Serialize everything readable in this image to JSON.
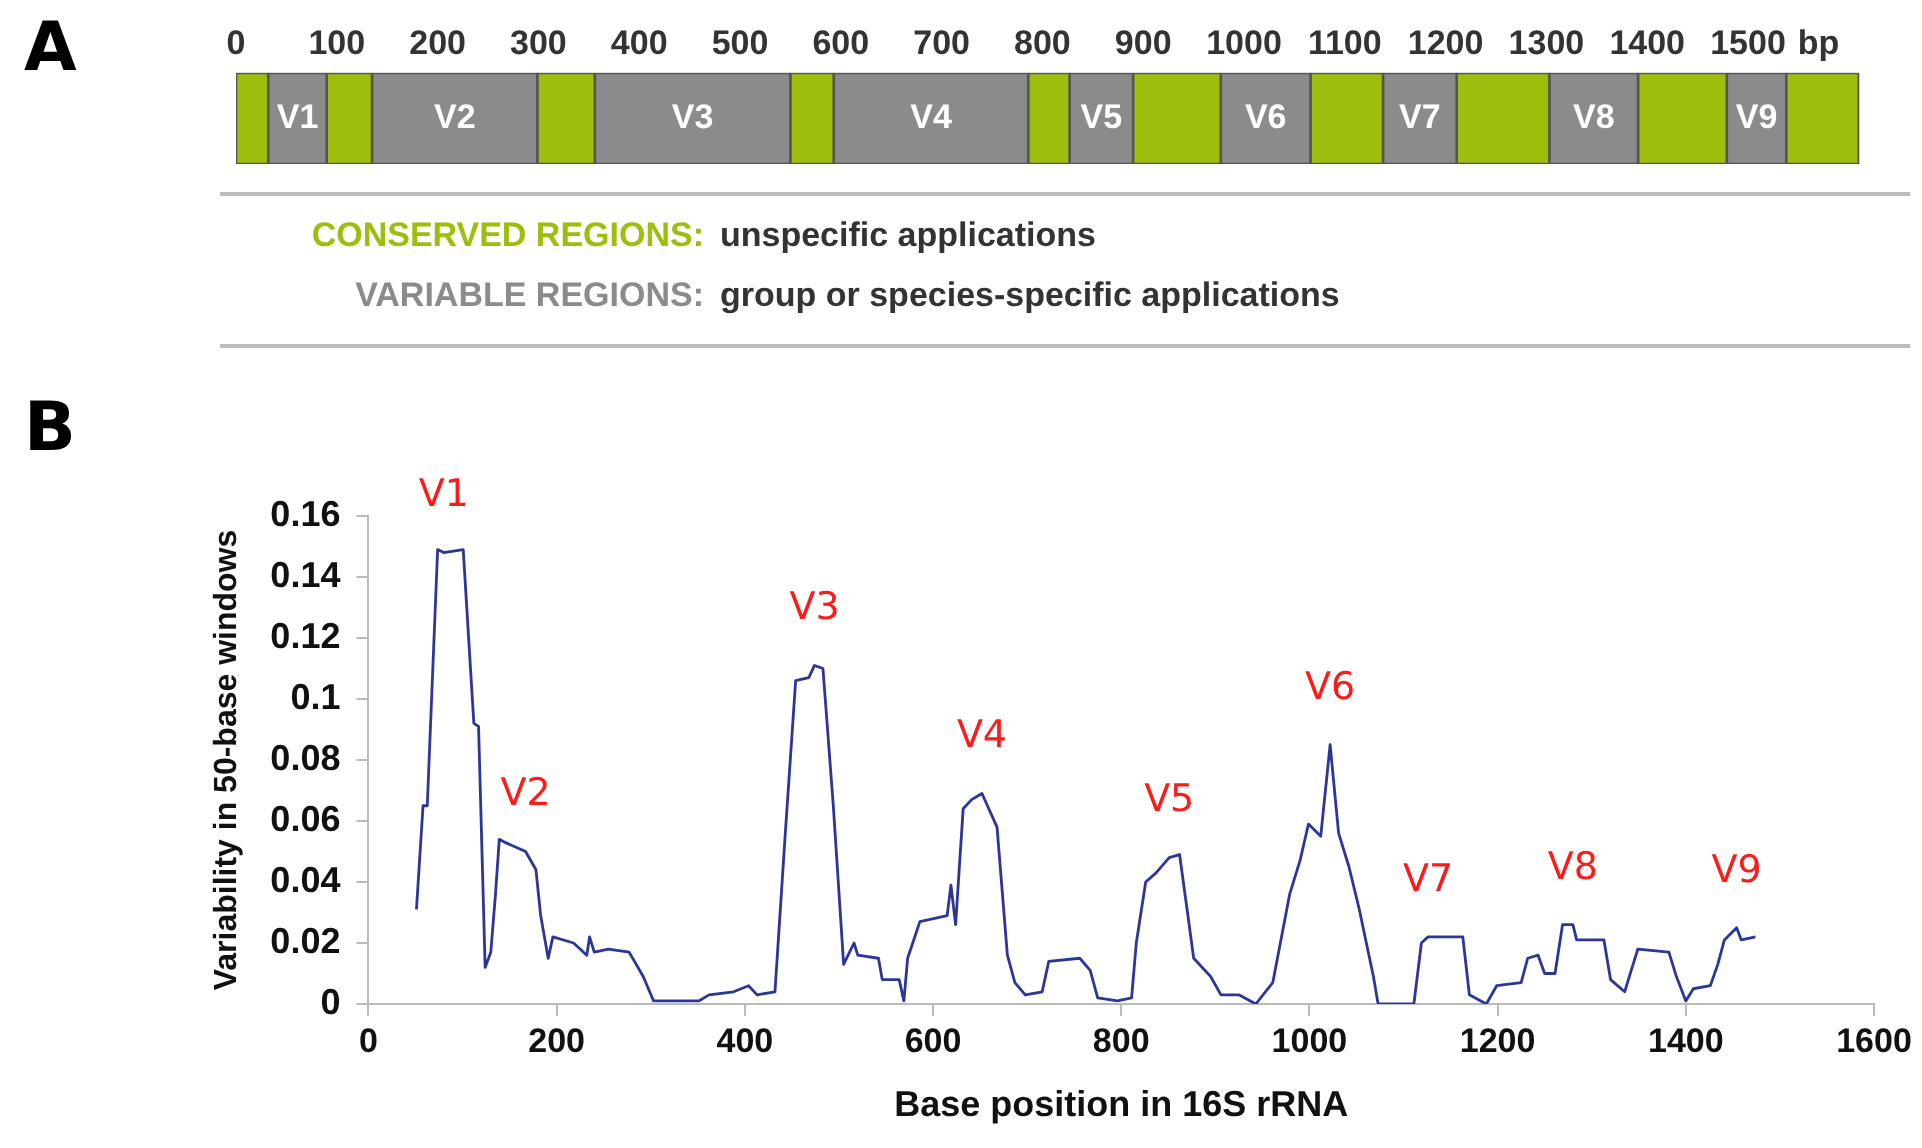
{
  "chart_data": [
    {
      "type": "bar",
      "title": "A",
      "orientation": "horizontal",
      "stacked": true,
      "categories": [
        null
      ],
      "xlabel": "bp",
      "xlim": [
        0,
        1625
      ],
      "xticks": [
        0,
        100,
        200,
        300,
        400,
        500,
        600,
        700,
        800,
        900,
        1000,
        1100,
        1200,
        1300,
        1400,
        1500
      ],
      "legend": false,
      "grid": false,
      "series": [
        {
          "color": "#9cbf0d",
          "values": [
            32
          ]
        },
        {
          "name": "V1",
          "color": "#8c8b8b",
          "values": [
            58
          ]
        },
        {
          "color": "#9cbf0d",
          "values": [
            45
          ]
        },
        {
          "name": "V2",
          "color": "#8c8b8b",
          "values": [
            164
          ]
        },
        {
          "color": "#9cbf0d",
          "values": [
            57
          ]
        },
        {
          "name": "V3",
          "color": "#8c8b8b",
          "values": [
            194
          ]
        },
        {
          "color": "#9cbf0d",
          "values": [
            43
          ]
        },
        {
          "name": "V4",
          "color": "#8c8b8b",
          "values": [
            193
          ]
        },
        {
          "color": "#9cbf0d",
          "values": [
            41
          ]
        },
        {
          "name": "V5",
          "color": "#8c8b8b",
          "values": [
            63
          ]
        },
        {
          "color": "#9cbf0d",
          "values": [
            87
          ]
        },
        {
          "name": "V6",
          "color": "#8c8b8b",
          "values": [
            89
          ]
        },
        {
          "color": "#9cbf0d",
          "values": [
            72
          ]
        },
        {
          "name": "V7",
          "color": "#8c8b8b",
          "values": [
            73
          ]
        },
        {
          "color": "#9cbf0d",
          "values": [
            92
          ]
        },
        {
          "name": "V8",
          "color": "#8c8b8b",
          "values": [
            88
          ]
        },
        {
          "color": "#9cbf0d",
          "values": [
            88
          ]
        },
        {
          "name": "V9",
          "color": "#8c8b8b",
          "values": [
            59
          ]
        },
        {
          "color": "#9cbf0d",
          "values": [
            72
          ]
        }
      ],
      "annotations": [
        "CONSERVED REGIONS:",
        "unspecific applications",
        "VARIABLE REGIONS:",
        "group or species-specific applications"
      ]
    },
    {
      "type": "line",
      "title": "B",
      "xlabel": "Base position in 16S rRNA",
      "ylabel": "Variability in 50-base windows",
      "xlim": [
        0,
        1600
      ],
      "xticks": [
        0,
        200,
        400,
        600,
        800,
        1000,
        1200,
        1400,
        1600
      ],
      "ylim": [
        0,
        0.16
      ],
      "yticks": [
        0,
        0.02,
        0.04,
        0.06,
        0.08,
        0.1,
        0.12,
        0.14,
        0.16
      ],
      "grid": false,
      "legend": false,
      "marker": "none",
      "line_style": "solid",
      "series": [
        {
          "color": "#2b3699",
          "x": [
            51,
            58,
            62.5,
            73.5,
            80,
            100.7,
            112,
            117,
            124,
            130,
            135,
            139,
            145,
            167,
            178,
            183,
            191,
            196,
            218,
            232,
            235,
            240,
            255,
            277,
            292,
            303,
            351,
            362,
            388,
            404,
            413,
            432,
            443,
            454,
            468,
            474,
            483,
            494,
            505,
            516,
            520,
            542,
            546,
            564,
            569,
            573,
            586,
            615,
            619,
            624,
            632,
            641,
            652,
            668,
            679,
            687,
            698,
            716,
            723,
            756,
            767,
            775,
            796,
            811,
            816,
            826,
            837,
            851,
            862,
            870,
            877,
            895,
            906,
            925,
            943,
            961,
            979,
            990,
            999,
            1012,
            1022,
            1031,
            1042,
            1053,
            1068,
            1073,
            1111,
            1119,
            1126,
            1163,
            1170,
            1188,
            1199,
            1225,
            1232,
            1243,
            1250,
            1261,
            1269,
            1280,
            1284,
            1313,
            1320,
            1335,
            1342,
            1349,
            1382,
            1390,
            1400,
            1408,
            1426,
            1434,
            1441,
            1454,
            1459,
            1474
          ],
          "values": [
            0.031,
            0.065,
            0.065,
            0.149,
            0.148,
            0.149,
            0.092,
            0.091,
            0.012,
            0.017,
            0.036,
            0.054,
            0.053,
            0.05,
            0.044,
            0.029,
            0.015,
            0.022,
            0.02,
            0.016,
            0.022,
            0.017,
            0.018,
            0.017,
            0.009,
            0.001,
            0.001,
            0.003,
            0.004,
            0.006,
            0.003,
            0.004,
            0.056,
            0.106,
            0.107,
            0.111,
            0.11,
            0.065,
            0.013,
            0.02,
            0.016,
            0.015,
            0.008,
            0.008,
            0.001,
            0.015,
            0.027,
            0.029,
            0.039,
            0.026,
            0.064,
            0.067,
            0.069,
            0.058,
            0.016,
            0.007,
            0.003,
            0.004,
            0.014,
            0.015,
            0.011,
            0.002,
            0.001,
            0.002,
            0.02,
            0.04,
            0.043,
            0.048,
            0.049,
            0.031,
            0.015,
            0.009,
            0.003,
            0.003,
            0,
            0.007,
            0.036,
            0.047,
            0.059,
            0.055,
            0.085,
            0.056,
            0.045,
            0.031,
            0.009,
            0,
            0,
            0.02,
            0.022,
            0.022,
            0.003,
            0,
            0.006,
            0.007,
            0.015,
            0.016,
            0.01,
            0.01,
            0.026,
            0.026,
            0.021,
            0.021,
            0.008,
            0.004,
            0.011,
            0.018,
            0.017,
            0.009,
            0.001,
            0.005,
            0.006,
            0.013,
            0.021,
            0.025,
            0.021,
            0.022
          ]
        }
      ],
      "annotations": [
        {
          "text": "V1",
          "x": 80,
          "y": 0.148
        },
        {
          "text": "V2",
          "x": 167,
          "y": 0.05
        },
        {
          "text": "V3",
          "x": 474,
          "y": 0.111
        },
        {
          "text": "V4",
          "x": 652,
          "y": 0.069
        },
        {
          "text": "V5",
          "x": 851,
          "y": 0.048
        },
        {
          "text": "V6",
          "x": 1022,
          "y": 0.085
        },
        {
          "text": "V7",
          "x": 1126,
          "y": 0.022
        },
        {
          "text": "V8",
          "x": 1280,
          "y": 0.026
        },
        {
          "text": "V9",
          "x": 1454,
          "y": 0.025
        }
      ]
    }
  ]
}
